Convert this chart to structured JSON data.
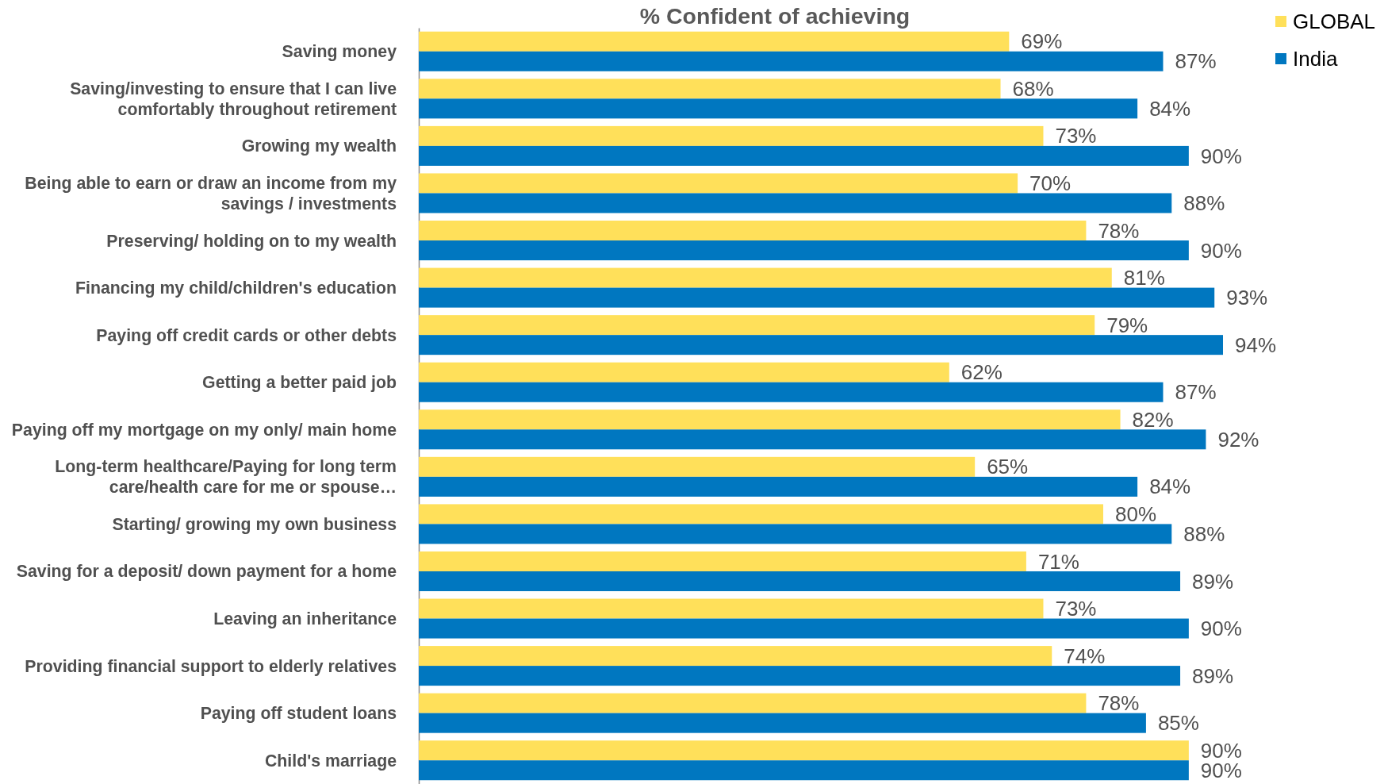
{
  "chart_data": {
    "type": "bar",
    "orientation": "horizontal",
    "title": "% Confident of achieving",
    "categories": [
      "Saving money",
      "Saving/investing to ensure that I can live comfortably throughout retirement",
      "Growing my wealth",
      "Being able to earn or draw an income from my savings / investments",
      "Preserving/ holding on to my wealth",
      "Financing my child/children's education",
      "Paying off credit cards or other debts",
      "Getting a better paid job",
      "Paying off my mortgage on my only/ main home",
      "Long-term healthcare/Paying for long term care/health care for me or spouse…",
      "Starting/ growing my own business",
      "Saving for a deposit/ down payment for a home",
      "Leaving an inheritance",
      "Providing financial support to elderly relatives",
      "Paying off student loans",
      "Child's marriage"
    ],
    "series": [
      {
        "name": "GLOBAL",
        "color": "#ffe05a",
        "values": [
          69,
          68,
          73,
          70,
          78,
          81,
          79,
          62,
          82,
          65,
          80,
          71,
          73,
          74,
          78,
          90
        ],
        "value_labels": [
          "69%",
          "68%",
          "73%",
          "70%",
          "78%",
          "81%",
          "79%",
          "62%",
          "82%",
          "65%",
          "80%",
          "71%",
          "73%",
          "74%",
          "78%",
          "90%"
        ]
      },
      {
        "name": "India",
        "color": "#0077c0",
        "values": [
          87,
          84,
          90,
          88,
          90,
          93,
          94,
          87,
          92,
          84,
          88,
          89,
          90,
          89,
          85,
          90
        ],
        "value_labels": [
          "87%",
          "84%",
          "90%",
          "88%",
          "90%",
          "93%",
          "94%",
          "87%",
          "92%",
          "84%",
          "88%",
          "89%",
          "90%",
          "89%",
          "85%",
          "90%"
        ]
      }
    ],
    "tick_labels": "y",
    "legend": "top right"
  }
}
